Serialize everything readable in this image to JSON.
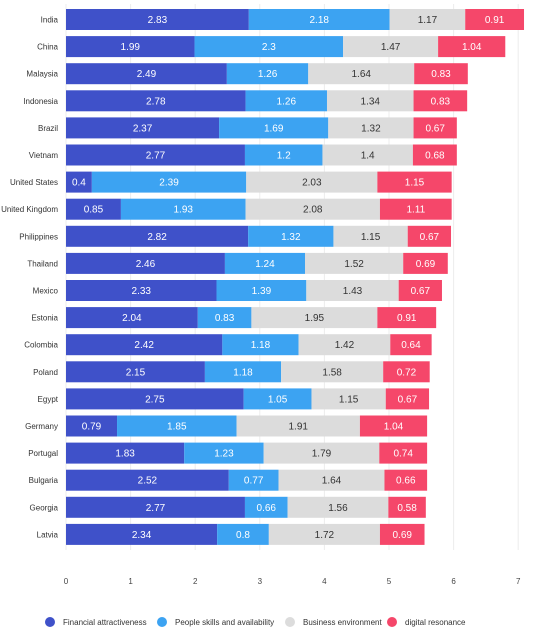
{
  "chart_data": {
    "type": "bar",
    "orientation": "horizontal",
    "stacked": true,
    "title": "",
    "xlabel": "",
    "ylabel": "",
    "xlim": [
      0,
      7
    ],
    "x_ticks": [
      "0",
      "1",
      "2",
      "3",
      "4",
      "5",
      "6",
      "7"
    ],
    "grid": true,
    "legend_position": "bottom",
    "categories": [
      "India",
      "China",
      "Malaysia",
      "Indonesia",
      "Brazil",
      "Vietnam",
      "United States",
      "United Kingdom",
      "Philippines",
      "Thailand",
      "Mexico",
      "Estonia",
      "Colombia",
      "Poland",
      "Egypt",
      "Germany",
      "Portugal",
      "Bulgaria",
      "Georgia",
      "Latvia"
    ],
    "series": [
      {
        "name": "Financial attractiveness",
        "color": "#3f51c9",
        "values": [
          2.83,
          1.99,
          2.49,
          2.78,
          2.37,
          2.77,
          0.4,
          0.85,
          2.82,
          2.46,
          2.33,
          2.04,
          2.42,
          2.15,
          2.75,
          0.79,
          1.83,
          2.52,
          2.77,
          2.34
        ],
        "labels": [
          "2.83",
          "1.99",
          "2.49",
          "2.78",
          "2.37",
          "2.77",
          "0.4",
          "0.85",
          "2.82",
          "2.46",
          "2.33",
          "2.04",
          "2.42",
          "2.15",
          "2.75",
          "0.79",
          "1.83",
          "2.52",
          "2.77",
          "2.34"
        ]
      },
      {
        "name": "People skills and availability",
        "color": "#3ca3f2",
        "values": [
          2.18,
          2.3,
          1.26,
          1.26,
          1.69,
          1.2,
          2.39,
          1.93,
          1.32,
          1.24,
          1.39,
          0.83,
          1.18,
          1.18,
          1.05,
          1.85,
          1.23,
          0.77,
          0.66,
          0.8
        ],
        "labels": [
          "2.18",
          "2.3",
          "1.26",
          "1.26",
          "1.69",
          "1.2",
          "2.39",
          "1.93",
          "1.32",
          "1.24",
          "1.39",
          "0.83",
          "1.18",
          "1.18",
          "1.05",
          "1.85",
          "1.23",
          "0.77",
          "0.66",
          "0.8"
        ]
      },
      {
        "name": "Business environment",
        "color": "#dcdcdc",
        "values": [
          1.17,
          1.47,
          1.64,
          1.34,
          1.32,
          1.4,
          2.03,
          2.08,
          1.15,
          1.52,
          1.43,
          1.95,
          1.42,
          1.58,
          1.15,
          1.91,
          1.79,
          1.64,
          1.56,
          1.72
        ],
        "labels": [
          "1.17",
          "1.47",
          "1.64",
          "1.34",
          "1.32",
          "1.4",
          "2.03",
          "2.08",
          "1.15",
          "1.52",
          "1.43",
          "1.95",
          "1.42",
          "1.58",
          "1.15",
          "1.91",
          "1.79",
          "1.64",
          "1.56",
          "1.72"
        ]
      },
      {
        "name": "digital resonance",
        "color": "#f5476a",
        "values": [
          0.91,
          1.04,
          0.83,
          0.83,
          0.67,
          0.68,
          1.15,
          1.11,
          0.67,
          0.69,
          0.67,
          0.91,
          0.64,
          0.72,
          0.67,
          1.04,
          0.74,
          0.66,
          0.58,
          0.69
        ],
        "labels": [
          "0.91",
          "1.04",
          "0.83",
          "0.83",
          "0.67",
          "0.68",
          "1.15",
          "1.11",
          "0.67",
          "0.69",
          "0.67",
          "0.91",
          "0.64",
          "0.72",
          "0.67",
          "1.04",
          "0.74",
          "0.66",
          "0.58",
          "0.69"
        ]
      }
    ]
  }
}
